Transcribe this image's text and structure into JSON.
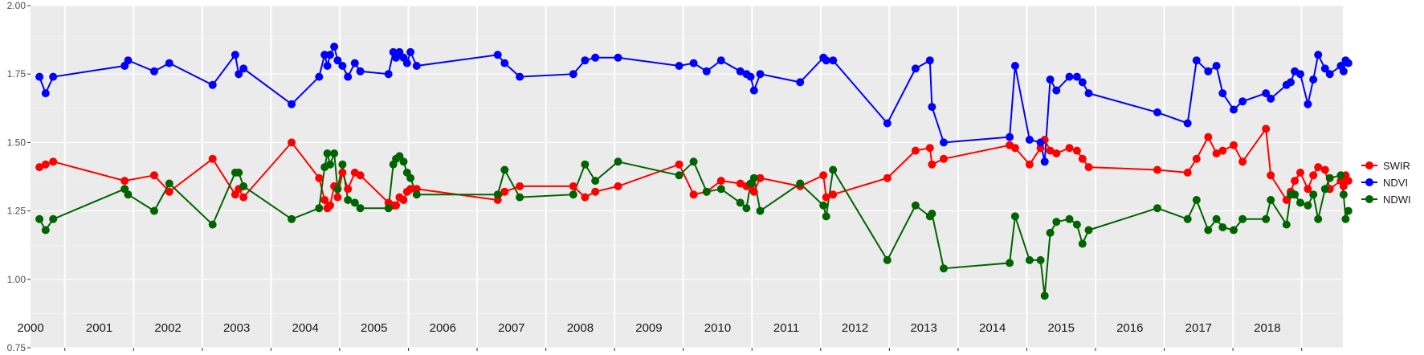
{
  "chart_data": {
    "type": "line",
    "ylim": [
      0.75,
      2.0
    ],
    "xlim": [
      2000.0,
      2019.1
    ],
    "y_ticks": [
      "0.75",
      "1.00",
      "1.25",
      "1.50",
      "1.75",
      "2.00"
    ],
    "y_tick_values": [
      0.75,
      1.0,
      1.25,
      1.5,
      1.75,
      2.0
    ],
    "year_labels": [
      "2000",
      "2001",
      "2002",
      "2003",
      "2004",
      "2005",
      "2006",
      "2007",
      "2008",
      "2009",
      "2010",
      "2011",
      "2012",
      "2013",
      "2014",
      "2015",
      "2016",
      "2017",
      "2018"
    ],
    "grid": true,
    "legend_position": "right",
    "series": [
      {
        "name": "SWIR",
        "color": "#ff0000",
        "x": [
          2000.13,
          2000.22,
          2000.33,
          2001.37,
          2001.8,
          2002.02,
          2002.65,
          2002.98,
          2003.03,
          2003.1,
          2003.8,
          2004.2,
          2004.28,
          2004.32,
          2004.36,
          2004.42,
          2004.47,
          2004.54,
          2004.62,
          2004.72,
          2004.8,
          2005.21,
          2005.28,
          2005.32,
          2005.37,
          2005.43,
          2005.48,
          2005.53,
          2005.62,
          2006.8,
          2006.9,
          2007.12,
          2007.9,
          2008.07,
          2008.22,
          2008.55,
          2009.44,
          2009.65,
          2009.84,
          2010.05,
          2010.33,
          2010.42,
          2010.48,
          2010.53,
          2010.62,
          2011.2,
          2011.54,
          2011.58,
          2011.68,
          2012.47,
          2012.88,
          2013.09,
          2013.12,
          2013.29,
          2014.25,
          2014.33,
          2014.54,
          2014.7,
          2014.76,
          2014.84,
          2014.93,
          2015.12,
          2015.23,
          2015.31,
          2015.4,
          2016.4,
          2016.84,
          2016.97,
          2017.14,
          2017.26,
          2017.35,
          2017.51,
          2017.64,
          2017.98,
          2018.05,
          2018.28,
          2018.34,
          2018.4,
          2018.48,
          2018.59,
          2018.67,
          2018.74,
          2018.84,
          2018.91,
          2019.07,
          2019.11,
          2019.14,
          2019.18
        ],
        "y": [
          1.41,
          1.42,
          1.43,
          1.36,
          1.38,
          1.32,
          1.44,
          1.31,
          1.33,
          1.3,
          1.5,
          1.37,
          1.29,
          1.26,
          1.27,
          1.34,
          1.3,
          1.39,
          1.33,
          1.39,
          1.38,
          1.28,
          1.27,
          1.27,
          1.3,
          1.29,
          1.32,
          1.33,
          1.33,
          1.29,
          1.32,
          1.34,
          1.34,
          1.3,
          1.32,
          1.34,
          1.42,
          1.31,
          1.32,
          1.36,
          1.35,
          1.34,
          1.34,
          1.32,
          1.37,
          1.34,
          1.38,
          1.3,
          1.31,
          1.37,
          1.47,
          1.48,
          1.42,
          1.44,
          1.49,
          1.48,
          1.42,
          1.48,
          1.51,
          1.47,
          1.46,
          1.48,
          1.47,
          1.44,
          1.41,
          1.4,
          1.39,
          1.44,
          1.52,
          1.46,
          1.47,
          1.49,
          1.43,
          1.55,
          1.38,
          1.29,
          1.32,
          1.36,
          1.39,
          1.33,
          1.38,
          1.41,
          1.4,
          1.33,
          1.36,
          1.34,
          1.38,
          1.36
        ],
        "x_note": "x values are decimal years"
      },
      {
        "name": "NDVI",
        "color": "#0000ff",
        "x": [
          2000.13,
          2000.22,
          2000.33,
          2001.37,
          2001.42,
          2001.8,
          2002.02,
          2002.65,
          2002.98,
          2003.03,
          2003.1,
          2003.8,
          2004.2,
          2004.28,
          2004.32,
          2004.36,
          2004.42,
          2004.47,
          2004.54,
          2004.62,
          2004.72,
          2004.8,
          2005.21,
          2005.28,
          2005.32,
          2005.37,
          2005.43,
          2005.48,
          2005.53,
          2005.62,
          2006.8,
          2006.9,
          2007.12,
          2007.9,
          2008.07,
          2008.22,
          2008.55,
          2009.44,
          2009.65,
          2009.84,
          2010.05,
          2010.33,
          2010.42,
          2010.48,
          2010.53,
          2010.62,
          2011.2,
          2011.54,
          2011.58,
          2011.68,
          2012.47,
          2012.88,
          2013.09,
          2013.12,
          2013.29,
          2014.25,
          2014.33,
          2014.54,
          2014.7,
          2014.76,
          2014.84,
          2014.93,
          2015.12,
          2015.23,
          2015.31,
          2015.4,
          2016.4,
          2016.84,
          2016.97,
          2017.14,
          2017.26,
          2017.35,
          2017.51,
          2017.64,
          2017.98,
          2018.05,
          2018.28,
          2018.34,
          2018.4,
          2018.48,
          2018.59,
          2018.67,
          2018.74,
          2018.84,
          2018.91,
          2019.07,
          2019.11,
          2019.14,
          2019.18
        ],
        "y": [
          1.74,
          1.68,
          1.74,
          1.78,
          1.8,
          1.76,
          1.79,
          1.71,
          1.82,
          1.75,
          1.77,
          1.64,
          1.74,
          1.82,
          1.78,
          1.82,
          1.85,
          1.8,
          1.78,
          1.74,
          1.79,
          1.76,
          1.75,
          1.83,
          1.81,
          1.83,
          1.81,
          1.79,
          1.83,
          1.78,
          1.82,
          1.79,
          1.74,
          1.75,
          1.8,
          1.81,
          1.81,
          1.78,
          1.79,
          1.76,
          1.8,
          1.76,
          1.75,
          1.74,
          1.69,
          1.75,
          1.72,
          1.81,
          1.8,
          1.8,
          1.57,
          1.77,
          1.8,
          1.63,
          1.5,
          1.52,
          1.78,
          1.51,
          1.5,
          1.43,
          1.73,
          1.69,
          1.74,
          1.74,
          1.72,
          1.68,
          1.61,
          1.57,
          1.8,
          1.76,
          1.78,
          1.68,
          1.62,
          1.65,
          1.68,
          1.66,
          1.71,
          1.72,
          1.76,
          1.75,
          1.64,
          1.73,
          1.82,
          1.77,
          1.75,
          1.78,
          1.76,
          1.8,
          1.79
        ],
        "x_note": "x values are decimal years"
      },
      {
        "name": "NDWI",
        "color": "#006400",
        "x": [
          2000.13,
          2000.22,
          2000.33,
          2001.37,
          2001.42,
          2001.8,
          2002.02,
          2002.65,
          2002.98,
          2003.03,
          2003.1,
          2003.8,
          2004.2,
          2004.28,
          2004.32,
          2004.36,
          2004.42,
          2004.47,
          2004.54,
          2004.62,
          2004.72,
          2004.8,
          2005.21,
          2005.28,
          2005.32,
          2005.37,
          2005.43,
          2005.48,
          2005.53,
          2005.62,
          2006.8,
          2006.9,
          2007.12,
          2007.9,
          2008.07,
          2008.22,
          2008.55,
          2009.44,
          2009.65,
          2009.84,
          2010.05,
          2010.33,
          2010.42,
          2010.48,
          2010.53,
          2010.62,
          2011.2,
          2011.54,
          2011.58,
          2011.68,
          2012.47,
          2012.88,
          2013.09,
          2013.12,
          2013.29,
          2014.25,
          2014.33,
          2014.54,
          2014.7,
          2014.76,
          2014.84,
          2014.93,
          2015.12,
          2015.23,
          2015.31,
          2015.4,
          2016.4,
          2016.84,
          2016.97,
          2017.14,
          2017.26,
          2017.35,
          2017.51,
          2017.64,
          2017.98,
          2018.05,
          2018.28,
          2018.34,
          2018.4,
          2018.48,
          2018.59,
          2018.67,
          2018.74,
          2018.84,
          2018.91,
          2019.07,
          2019.11,
          2019.14,
          2019.18
        ],
        "y": [
          1.22,
          1.18,
          1.22,
          1.33,
          1.31,
          1.25,
          1.35,
          1.2,
          1.39,
          1.39,
          1.34,
          1.22,
          1.26,
          1.41,
          1.46,
          1.42,
          1.46,
          1.33,
          1.42,
          1.29,
          1.28,
          1.26,
          1.26,
          1.42,
          1.44,
          1.45,
          1.43,
          1.39,
          1.37,
          1.31,
          1.31,
          1.4,
          1.3,
          1.31,
          1.42,
          1.36,
          1.43,
          1.38,
          1.43,
          1.32,
          1.33,
          1.28,
          1.26,
          1.35,
          1.37,
          1.25,
          1.35,
          1.27,
          1.23,
          1.4,
          1.07,
          1.27,
          1.23,
          1.24,
          1.04,
          1.06,
          1.23,
          1.07,
          1.07,
          0.94,
          1.17,
          1.21,
          1.22,
          1.2,
          1.13,
          1.18,
          1.26,
          1.22,
          1.29,
          1.18,
          1.22,
          1.19,
          1.18,
          1.22,
          1.22,
          1.29,
          1.2,
          1.31,
          1.31,
          1.28,
          1.27,
          1.31,
          1.22,
          1.33,
          1.37,
          1.38,
          1.31,
          1.22,
          1.25
        ]
      }
    ]
  }
}
